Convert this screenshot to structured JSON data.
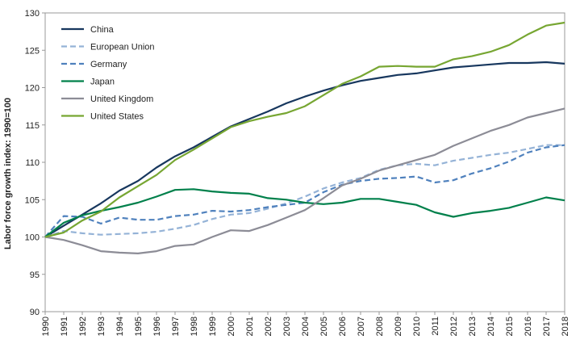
{
  "chart_data": {
    "type": "line",
    "ylabel": "Labor force growth index: 1990=100",
    "xlabel": "",
    "ylim": [
      90,
      130
    ],
    "yticks": [
      "90",
      "95",
      "100",
      "105",
      "110",
      "115",
      "120",
      "125",
      "130"
    ],
    "x": [
      "1990",
      "1991",
      "1992",
      "1993",
      "1994",
      "1995",
      "1996",
      "1997",
      "1998",
      "1999",
      "2000",
      "2001",
      "2002",
      "2003",
      "2004",
      "2005",
      "2006",
      "2007",
      "2008",
      "2009",
      "2010",
      "2011",
      "2012",
      "2013",
      "2014",
      "2015",
      "2016",
      "2017",
      "2018"
    ],
    "legend_position": "top-left",
    "series": [
      {
        "name": "China",
        "color": "#17375E",
        "dash": "solid",
        "values": [
          100,
          101.5,
          103.0,
          104.5,
          106.2,
          107.5,
          109.3,
          110.8,
          112.0,
          113.4,
          114.8,
          115.8,
          116.8,
          117.9,
          118.8,
          119.6,
          120.3,
          120.9,
          121.3,
          121.7,
          121.9,
          122.3,
          122.7,
          122.9,
          123.1,
          123.3,
          123.3,
          123.4,
          123.2
        ]
      },
      {
        "name": "European Union",
        "color": "#95B3D7",
        "dash": "dashed",
        "values": [
          100,
          100.8,
          100.5,
          100.3,
          100.4,
          100.5,
          100.7,
          101.1,
          101.6,
          102.4,
          103.0,
          103.2,
          103.8,
          104.5,
          105.4,
          106.5,
          107.3,
          107.9,
          109.0,
          109.6,
          109.8,
          109.6,
          110.2,
          110.6,
          111.0,
          111.3,
          111.8,
          112.3,
          112.3
        ]
      },
      {
        "name": "Germany",
        "color": "#4F81BD",
        "dash": "dashed",
        "values": [
          100,
          102.8,
          102.7,
          101.8,
          102.6,
          102.3,
          102.3,
          102.8,
          103.0,
          103.5,
          103.4,
          103.6,
          104.0,
          104.3,
          104.6,
          106.0,
          107.0,
          107.5,
          107.8,
          107.9,
          108.1,
          107.3,
          107.6,
          108.5,
          109.2,
          110.1,
          111.3,
          112.0,
          112.3
        ]
      },
      {
        "name": "Japan",
        "color": "#00804B",
        "dash": "solid",
        "values": [
          100,
          101.9,
          102.9,
          103.5,
          104.0,
          104.6,
          105.4,
          106.3,
          106.4,
          106.1,
          105.9,
          105.8,
          105.2,
          105.0,
          104.6,
          104.4,
          104.6,
          105.1,
          105.1,
          104.7,
          104.3,
          103.3,
          102.7,
          103.2,
          103.5,
          103.9,
          104.6,
          105.3,
          104.9
        ]
      },
      {
        "name": "United Kingdom",
        "color": "#8C8C96",
        "dash": "solid",
        "values": [
          100,
          99.6,
          98.9,
          98.1,
          97.9,
          97.8,
          98.1,
          98.8,
          99.0,
          100.0,
          100.9,
          100.8,
          101.6,
          102.6,
          103.6,
          105.2,
          106.9,
          107.8,
          108.9,
          109.6,
          110.3,
          111.0,
          112.2,
          113.2,
          114.2,
          115.0,
          116.0,
          116.6,
          117.2
        ]
      },
      {
        "name": "United States",
        "color": "#77A632",
        "dash": "solid",
        "values": [
          100,
          100.6,
          102.2,
          103.4,
          105.3,
          106.8,
          108.3,
          110.3,
          111.7,
          113.2,
          114.7,
          115.5,
          116.1,
          116.6,
          117.5,
          119.0,
          120.5,
          121.5,
          122.8,
          122.9,
          122.8,
          122.8,
          123.8,
          124.2,
          124.8,
          125.7,
          127.1,
          128.3,
          128.7
        ]
      }
    ]
  }
}
